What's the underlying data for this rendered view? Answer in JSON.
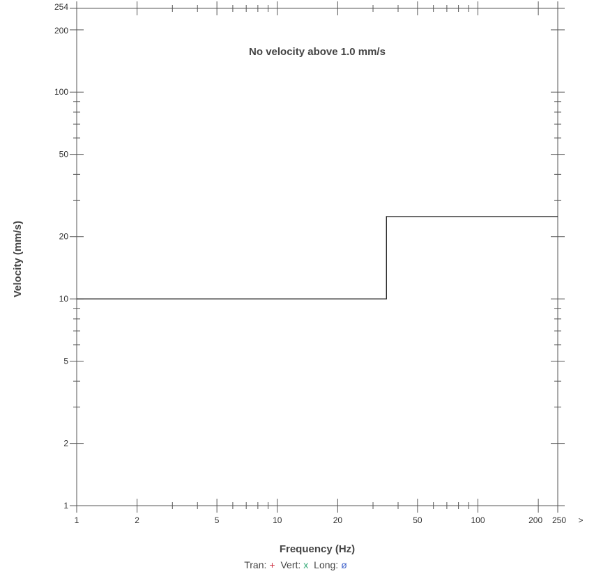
{
  "chart_data": {
    "type": "line",
    "title": "",
    "annotation": "No velocity above 1.0 mm/s",
    "xlabel": "Frequency (Hz)",
    "ylabel": "Velocity (mm/s)",
    "x_scale": "log",
    "y_scale": "log",
    "xlim": [
      1,
      250
    ],
    "ylim": [
      1,
      254
    ],
    "x_ticks": [
      1,
      2,
      5,
      10,
      20,
      50,
      100,
      200,
      250
    ],
    "x_tick_labels": [
      "1",
      "2",
      "5",
      "10",
      "20",
      "50",
      "100",
      "200",
      "250"
    ],
    "x_overflow_label": ">",
    "y_ticks": [
      1,
      2,
      5,
      10,
      20,
      50,
      100,
      200,
      254
    ],
    "y_tick_labels": [
      "1",
      "2",
      "5",
      "10",
      "20",
      "50",
      "100",
      "200",
      "254"
    ],
    "grid": false,
    "limit_line": {
      "x": [
        1,
        35,
        35,
        250
      ],
      "y": [
        10,
        10,
        25,
        25
      ]
    },
    "series": [],
    "legend": {
      "placement": "bottom-center",
      "entries": [
        {
          "label": "Tran:",
          "symbol": "+",
          "color": "#cc3344"
        },
        {
          "label": "Vert:",
          "symbol": "x",
          "color": "#33aa77"
        },
        {
          "label": "Long:",
          "symbol": "ø",
          "color": "#4466cc"
        }
      ]
    }
  }
}
